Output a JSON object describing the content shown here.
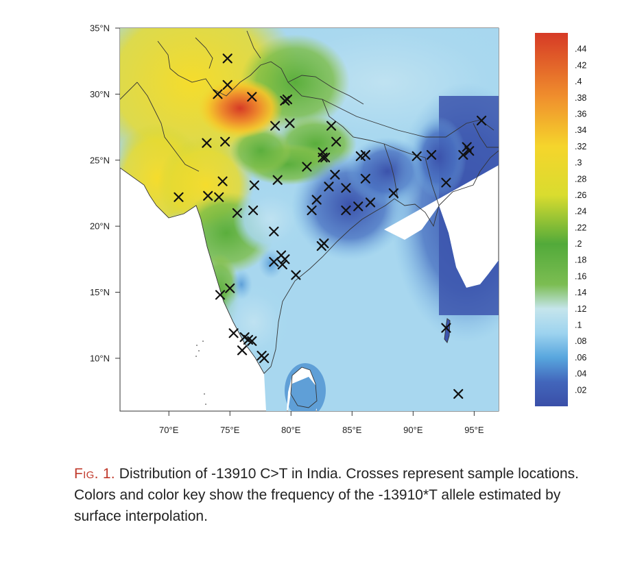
{
  "figure": {
    "caption_label": "Fig. 1.",
    "caption_text": " Distribution of -13910 C>T in India. Crosses represent sample locations. Colors and color key show the frequency of the -13910*T allele estimated by surface interpolation."
  },
  "colors": {
    "low": "#3a56b0",
    "light_blue": "#aedbf0",
    "green": "#5aae3c",
    "yellow": "#f2dc2a",
    "orange": "#f08a2a",
    "red": "#d73a27",
    "marker": "#111111",
    "ocean": "#ffffff"
  },
  "map": {
    "lon_range": [
      66,
      97
    ],
    "lat_range": [
      6,
      35
    ],
    "x_ticks": [
      {
        "value": 70,
        "label": "70°E"
      },
      {
        "value": 75,
        "label": "75°E"
      },
      {
        "value": 80,
        "label": "80°E"
      },
      {
        "value": 85,
        "label": "85°E"
      },
      {
        "value": 90,
        "label": "90°E"
      },
      {
        "value": 95,
        "label": "95°E"
      }
    ],
    "y_ticks": [
      {
        "value": 35,
        "label": "35°N"
      },
      {
        "value": 30,
        "label": "30°N"
      },
      {
        "value": 25,
        "label": "25°N"
      },
      {
        "value": 20,
        "label": "20°N"
      },
      {
        "value": 15,
        "label": "15°N"
      },
      {
        "value": 10,
        "label": "10°N"
      }
    ],
    "samples": [
      [
        74.8,
        32.7
      ],
      [
        74.8,
        30.7
      ],
      [
        74.0,
        30.0
      ],
      [
        76.8,
        29.8
      ],
      [
        79.5,
        29.5
      ],
      [
        79.7,
        29.6
      ],
      [
        78.7,
        27.6
      ],
      [
        79.9,
        27.8
      ],
      [
        83.3,
        27.6
      ],
      [
        73.1,
        26.3
      ],
      [
        74.6,
        26.4
      ],
      [
        83.7,
        26.4
      ],
      [
        82.6,
        25.6
      ],
      [
        82.6,
        25.2
      ],
      [
        85.7,
        25.3
      ],
      [
        86.1,
        25.4
      ],
      [
        90.3,
        25.3
      ],
      [
        91.5,
        25.4
      ],
      [
        94.4,
        26.0
      ],
      [
        94.1,
        25.4
      ],
      [
        94.6,
        25.7
      ],
      [
        95.6,
        28.0
      ],
      [
        81.3,
        24.5
      ],
      [
        82.8,
        25.2
      ],
      [
        74.4,
        23.4
      ],
      [
        77.0,
        23.1
      ],
      [
        78.9,
        23.5
      ],
      [
        83.6,
        23.9
      ],
      [
        86.1,
        23.6
      ],
      [
        92.7,
        23.3
      ],
      [
        70.8,
        22.2
      ],
      [
        73.2,
        22.3
      ],
      [
        74.1,
        22.2
      ],
      [
        83.1,
        23.0
      ],
      [
        84.5,
        22.9
      ],
      [
        82.1,
        22.0
      ],
      [
        85.5,
        21.5
      ],
      [
        86.5,
        21.8
      ],
      [
        88.4,
        22.5
      ],
      [
        84.5,
        21.2
      ],
      [
        75.6,
        21.0
      ],
      [
        76.9,
        21.2
      ],
      [
        81.7,
        21.2
      ],
      [
        78.6,
        19.6
      ],
      [
        82.5,
        18.5
      ],
      [
        82.7,
        18.7
      ],
      [
        79.2,
        17.8
      ],
      [
        79.5,
        17.5
      ],
      [
        78.6,
        17.3
      ],
      [
        79.3,
        17.1
      ],
      [
        80.4,
        16.3
      ],
      [
        75.0,
        15.3
      ],
      [
        74.2,
        14.8
      ],
      [
        75.3,
        11.9
      ],
      [
        76.2,
        11.6
      ],
      [
        76.5,
        11.4
      ],
      [
        76.8,
        11.3
      ],
      [
        76.0,
        10.6
      ],
      [
        77.6,
        10.2
      ],
      [
        77.8,
        10.0
      ],
      [
        92.7,
        12.3
      ],
      [
        93.7,
        7.3
      ]
    ]
  },
  "color_key": {
    "min": 0.0,
    "max": 0.46,
    "stops": [
      {
        "value": 0.0,
        "color": "#3a4fa8"
      },
      {
        "value": 0.03,
        "color": "#4266bb"
      },
      {
        "value": 0.06,
        "color": "#58a6de"
      },
      {
        "value": 0.09,
        "color": "#9dd3ef"
      },
      {
        "value": 0.12,
        "color": "#c5e5ec"
      },
      {
        "value": 0.15,
        "color": "#7cbd52"
      },
      {
        "value": 0.2,
        "color": "#52aa3a"
      },
      {
        "value": 0.26,
        "color": "#d9dc2f"
      },
      {
        "value": 0.32,
        "color": "#f5d52c"
      },
      {
        "value": 0.38,
        "color": "#f0902d"
      },
      {
        "value": 0.46,
        "color": "#d63a26"
      }
    ],
    "labels": [
      ".44",
      ".42",
      ".4",
      ".38",
      ".36",
      ".34",
      ".32",
      ".3",
      ".28",
      ".26",
      ".24",
      ".22",
      ".2",
      ".18",
      ".16",
      ".14",
      ".12",
      ".1",
      ".08",
      ".06",
      ".04",
      ".02"
    ]
  }
}
